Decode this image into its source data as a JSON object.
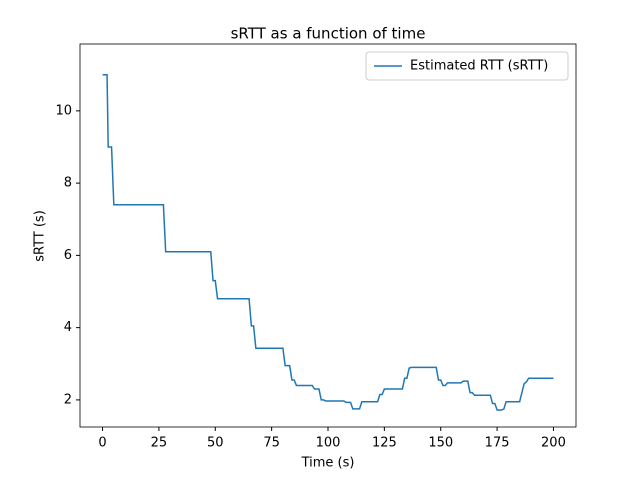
{
  "chart_data": {
    "type": "line",
    "title": "sRTT as a function of time",
    "x_label": "Time (s)",
    "y_label": "sRTT (s)",
    "x": [
      0,
      2,
      2.5,
      4,
      5,
      27,
      28,
      48,
      49,
      50,
      51,
      65,
      66,
      67,
      68,
      80,
      81,
      83,
      84,
      85,
      86,
      93,
      94,
      96,
      97,
      98,
      99,
      107,
      108,
      110,
      111,
      114,
      115,
      122,
      123,
      124,
      125,
      133,
      134,
      135,
      136,
      137,
      148,
      149,
      150,
      151,
      152,
      153,
      159,
      160,
      162,
      163,
      164,
      165,
      172,
      173,
      174,
      175,
      177,
      178,
      179,
      185,
      186,
      187,
      188,
      189,
      200
    ],
    "series": [
      {
        "name": "Estimated RTT (sRTT)",
        "color": "#1f77b4",
        "values": [
          11,
          11,
          9,
          9,
          7.4,
          7.4,
          6.1,
          6.1,
          5.3,
          5.3,
          4.8,
          4.8,
          4.05,
          4.05,
          3.43,
          3.43,
          2.95,
          2.95,
          2.55,
          2.55,
          2.4,
          2.4,
          2.3,
          2.3,
          2.0,
          2.0,
          1.97,
          1.97,
          1.93,
          1.93,
          1.75,
          1.75,
          1.95,
          1.95,
          2.15,
          2.15,
          2.3,
          2.3,
          2.6,
          2.6,
          2.88,
          2.9,
          2.9,
          2.55,
          2.55,
          2.4,
          2.4,
          2.47,
          2.47,
          2.52,
          2.52,
          2.2,
          2.2,
          2.13,
          2.13,
          1.9,
          1.9,
          1.72,
          1.72,
          1.75,
          1.95,
          1.95,
          2.2,
          2.45,
          2.5,
          2.6,
          2.6
        ]
      }
    ],
    "xlim": [
      -10,
      210
    ],
    "xticks": [
      0,
      25,
      50,
      75,
      100,
      125,
      150,
      175,
      200
    ],
    "ylim": [
      1.25,
      11.85
    ],
    "yticks": [
      2,
      4,
      6,
      8,
      10
    ],
    "grid": false,
    "legend": "upper right"
  }
}
